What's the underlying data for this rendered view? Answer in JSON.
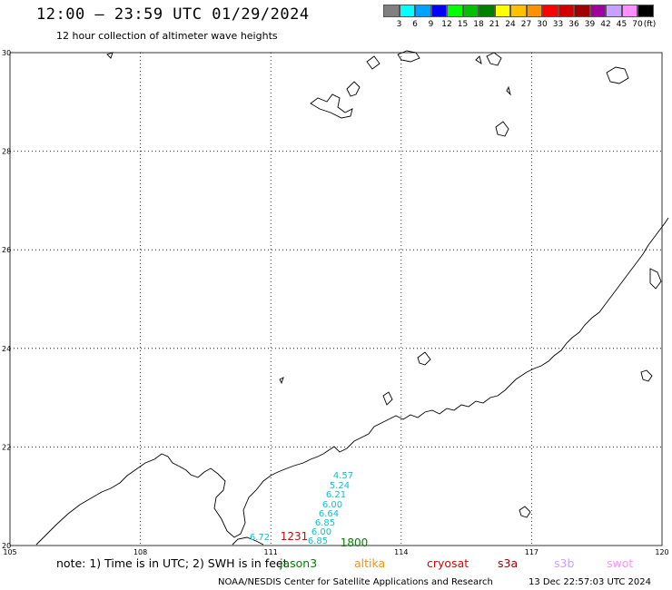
{
  "title": "12:00 – 23:59 UTC 01/29/2024",
  "subtitle": "12 hour collection of altimeter wave heights",
  "legend": {
    "labels": [
      "3",
      "6",
      "9",
      "12",
      "15",
      "18",
      "21",
      "24",
      "27",
      "30",
      "33",
      "36",
      "39",
      "42",
      "45",
      "70",
      "(ft)"
    ],
    "colors": [
      "#808080",
      "#00ffff",
      "#00a0ff",
      "#0000ff",
      "#00ff00",
      "#00c000",
      "#008000",
      "#ffff00",
      "#ffc000",
      "#ff9000",
      "#ff0000",
      "#d00000",
      "#a00000",
      "#a000a0",
      "#c8a0ff",
      "#ff90ff",
      "#000000"
    ]
  },
  "map": {
    "lat_labels": [
      "30",
      "28",
      "26",
      "24",
      "22",
      "20"
    ],
    "lon_labels": [
      "105",
      "108",
      "111",
      "114",
      "117",
      "120"
    ],
    "track_values": [
      "4.57",
      "5.24",
      "6.21",
      "6.00",
      "6.64",
      "6.85",
      "6.00",
      "6.85"
    ],
    "track_point_extra": "6.72",
    "time_labels": [
      {
        "text": "1231",
        "color": "#e00000"
      },
      {
        "text": "1800",
        "color": "#008000"
      }
    ]
  },
  "note": "note: 1) Time is in UTC; 2) SWH is in feet",
  "satellites": [
    {
      "name": "jason3",
      "color": "#008000"
    },
    {
      "name": "altika",
      "color": "#ff9000"
    },
    {
      "name": "cryosat",
      "color": "#e00000"
    },
    {
      "name": "s3a",
      "color": "#a00000"
    },
    {
      "name": "s3b",
      "color": "#c8a0ff"
    },
    {
      "name": "swot",
      "color": "#ff90ff"
    }
  ],
  "footer": {
    "left": "NOAA/NESDIS Center for Satellite Applications and Research",
    "right": "13 Dec 22:57:03 UTC 2024"
  }
}
